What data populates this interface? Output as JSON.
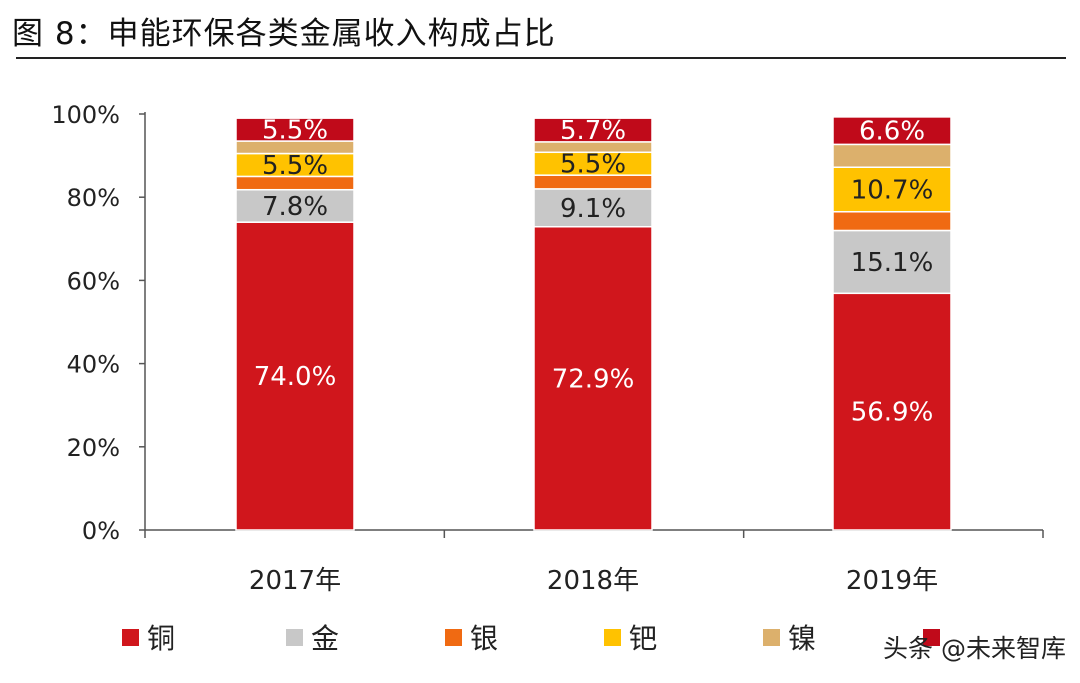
{
  "title": "图 8：申能环保各类金属收入构成占比",
  "watermark": "头条 @未来智库",
  "colors": {
    "铜": "#d0161c",
    "金": "#c8c8c8",
    "银": "#f06a12",
    "钯": "#ffc200",
    "镍": "#dcb06c",
    "其他": "#c00a1a"
  },
  "chart_data": {
    "type": "bar",
    "stacked": true,
    "categories": [
      "2017年",
      "2018年",
      "2019年"
    ],
    "ylim": [
      0,
      100
    ],
    "yticks": [
      "0%",
      "20%",
      "40%",
      "60%",
      "80%",
      "100%"
    ],
    "legend_position": "bottom",
    "series": [
      {
        "name": "铜",
        "values": [
          74.0,
          72.9,
          56.9
        ],
        "labels": [
          "74.0%",
          "72.9%",
          "56.9%"
        ]
      },
      {
        "name": "金",
        "values": [
          7.8,
          9.1,
          15.1
        ],
        "labels": [
          "7.8%",
          "9.1%",
          "15.1%"
        ]
      },
      {
        "name": "银",
        "values": [
          3.2,
          3.3,
          4.5
        ],
        "labels": [
          "",
          "",
          ""
        ]
      },
      {
        "name": "钯",
        "values": [
          5.5,
          5.5,
          10.7
        ],
        "labels": [
          "5.5%",
          "5.5%",
          "10.7%"
        ]
      },
      {
        "name": "镍",
        "values": [
          3.0,
          2.5,
          5.5
        ],
        "labels": [
          "",
          "",
          ""
        ]
      },
      {
        "name": "",
        "values": [
          5.5,
          5.7,
          6.6
        ],
        "labels": [
          "5.5%",
          "5.7%",
          "6.6%"
        ]
      }
    ]
  }
}
